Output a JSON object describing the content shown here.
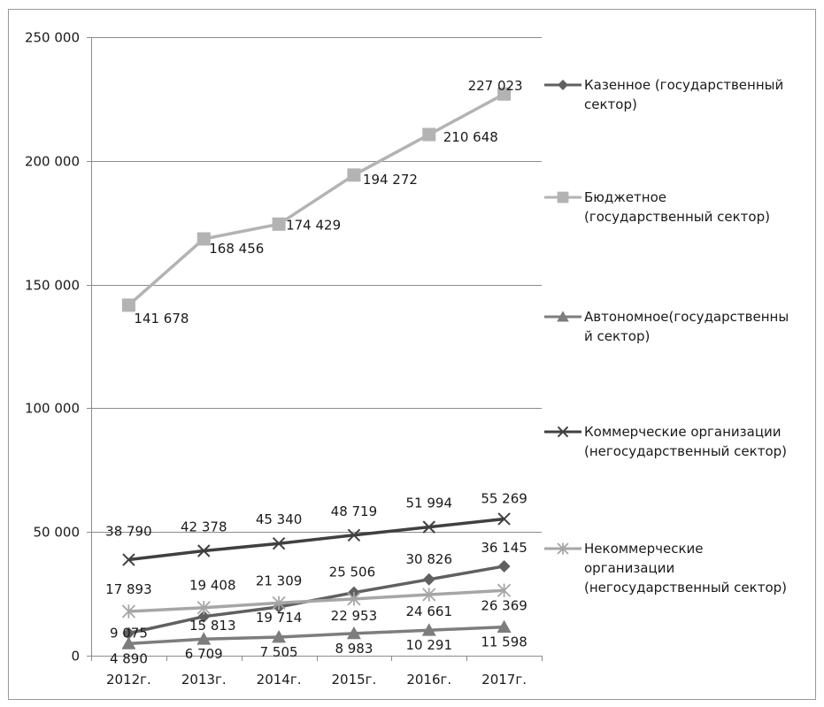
{
  "chart_data": {
    "type": "line",
    "categories": [
      "2012г.",
      "2013г.",
      "2014г.",
      "2015г.",
      "2016г.",
      "2017г."
    ],
    "ylim": [
      0,
      250000
    ],
    "yticks": [
      {
        "value": 0,
        "label": "0"
      },
      {
        "value": 50000,
        "label": "50 000"
      },
      {
        "value": 100000,
        "label": "100 000"
      },
      {
        "value": 150000,
        "label": "150 000"
      },
      {
        "value": 200000,
        "label": "200 000"
      },
      {
        "value": 250000,
        "label": "250 000"
      }
    ],
    "grid": true,
    "legend_position": "right",
    "series": [
      {
        "name": "Казенное (государственный сектор)",
        "legend_lines": [
          "Казенное (государственный",
          "сектор)"
        ],
        "marker": "diamond",
        "color": "#606060",
        "values": [
          9075,
          15813,
          19714,
          25506,
          30826,
          36145
        ],
        "labels": [
          "9 075",
          "15 813",
          "19 714",
          "25 506",
          "30 826",
          "36 145"
        ]
      },
      {
        "name": "Бюджетное (государственный сектор)",
        "legend_lines": [
          "Бюджетное",
          "(государственный сектор)"
        ],
        "marker": "square",
        "color": "#b3b3b3",
        "values": [
          141678,
          168456,
          174429,
          194272,
          210648,
          227023
        ],
        "labels": [
          "141 678",
          "168 456",
          "174 429",
          "194 272",
          "210 648",
          "227 023"
        ]
      },
      {
        "name": "Автономное(государственный сектор)",
        "legend_lines": [
          "Автономное(государственны",
          "й сектор)"
        ],
        "marker": "triangle",
        "color": "#7d7d7d",
        "values": [
          4890,
          6709,
          7505,
          8983,
          10291,
          11598
        ],
        "labels": [
          "4 890",
          "6 709",
          "7 505",
          "8 983",
          "10 291",
          "11 598"
        ]
      },
      {
        "name": "Коммерческие организации (негосударственный сектор)",
        "legend_lines": [
          "Коммерческие организации",
          "(негосударственный сектор)"
        ],
        "marker": "x",
        "color": "#404040",
        "values": [
          38790,
          42378,
          45340,
          48719,
          51994,
          55269
        ],
        "labels": [
          "38 790",
          "42 378",
          "45 340",
          "48 719",
          "51 994",
          "55 269"
        ]
      },
      {
        "name": "Некоммерческие организации (негосударственный сектор)",
        "legend_lines": [
          "Некоммерческие",
          "организации",
          "(негосударственный сектор)"
        ],
        "marker": "star",
        "color": "#a6a6a6",
        "values": [
          17893,
          19408,
          21309,
          22953,
          24661,
          26369
        ],
        "labels": [
          "17 893",
          "19 408",
          "21 309",
          "22 953",
          "24 661",
          "26 369"
        ]
      }
    ]
  }
}
